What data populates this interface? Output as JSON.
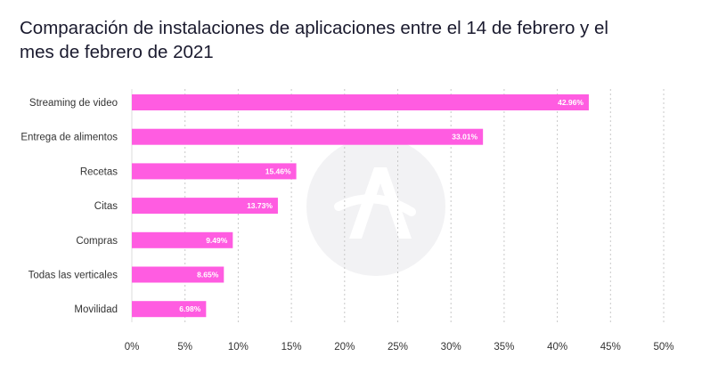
{
  "chart_data": {
    "type": "bar",
    "orientation": "horizontal",
    "title": "Comparación de instalaciones de aplicaciones entre el 14 de febrero y el mes de febrero de 2021",
    "categories": [
      "Streaming de video",
      "Entrega de alimentos",
      "Recetas",
      "Citas",
      "Compras",
      "Todas las verticales",
      "Movilidad"
    ],
    "values": [
      42.96,
      33.01,
      15.46,
      13.73,
      9.49,
      8.65,
      6.98
    ],
    "value_labels": [
      "42.96%",
      "33.01%",
      "15.46%",
      "13.73%",
      "9.49%",
      "8.65%",
      "6.98%"
    ],
    "x_ticks": [
      0,
      5,
      10,
      15,
      20,
      25,
      30,
      35,
      40,
      45,
      50
    ],
    "x_tick_labels": [
      "0%",
      "5%",
      "10%",
      "15%",
      "20%",
      "25%",
      "30%",
      "35%",
      "40%",
      "45%",
      "50%"
    ],
    "xlim": [
      0,
      50
    ],
    "xlabel": "",
    "ylabel": "",
    "grid": "vertical dotted",
    "bar_color": "#ff5ce1",
    "watermark": "adjust-logo-icon"
  }
}
